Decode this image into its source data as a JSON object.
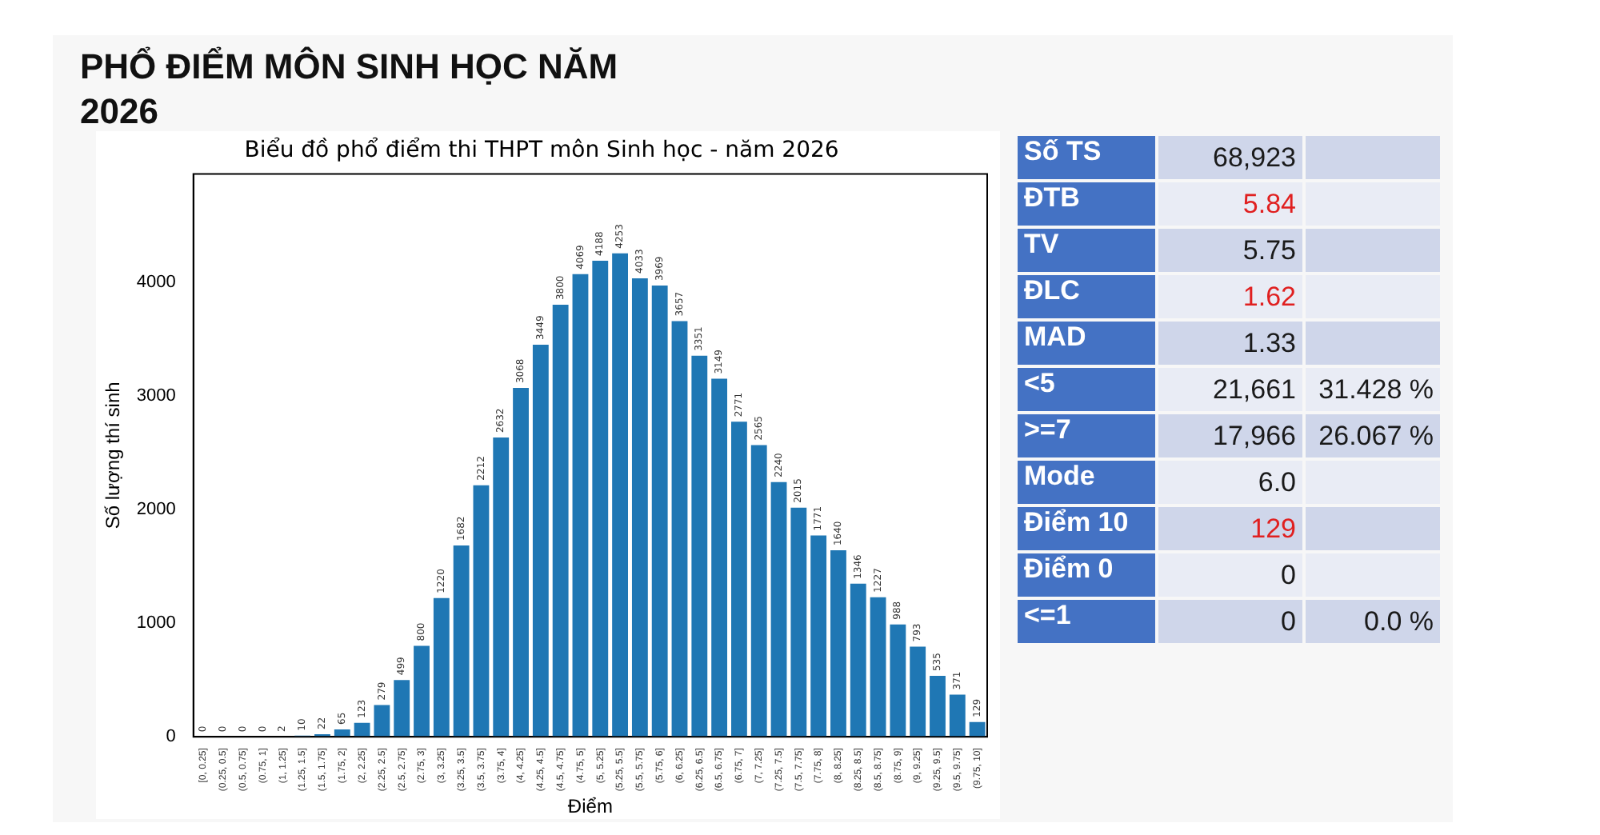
{
  "chart_data": [
    {
      "type": "bar",
      "title": "Biểu đồ phổ điểm thi THPT môn Sinh học - năm 2026",
      "xlabel": "Điểm",
      "ylabel": "Số lượng thí sinh",
      "annotations": [
        "PHỔ ĐIỂM MÔN SINH HỌC NĂM 2026"
      ],
      "categories": [
        "[0, 0.25]",
        "(0.25, 0.5]",
        "(0.5, 0.75]",
        "(0.75, 1]",
        "(1, 1.25]",
        "(1.25, 1.5]",
        "(1.5, 1.75]",
        "(1.75, 2]",
        "(2, 2.25]",
        "(2.25, 2.5]",
        "(2.5, 2.75]",
        "(2.75, 3]",
        "(3, 3.25]",
        "(3.25, 3.5]",
        "(3.5, 3.75]",
        "(3.75, 4]",
        "(4, 4.25]",
        "(4.25, 4.5]",
        "(4.5, 4.75]",
        "(4.75, 5]",
        "(5, 5.25]",
        "(5.25, 5.5]",
        "(5.5, 5.75]",
        "(5.75, 6]",
        "(6, 6.25]",
        "(6.25, 6.5]",
        "(6.5, 6.75]",
        "(6.75, 7]",
        "(7, 7.25]",
        "(7.25, 7.5]",
        "(7.5, 7.75]",
        "(7.75, 8]",
        "(8, 8.25]",
        "(8.25, 8.5]",
        "(8.5, 8.75]",
        "(8.75, 9]",
        "(9, 9.25]",
        "(9.25, 9.5]",
        "(9.5, 9.75]",
        "(9.75, 10]"
      ],
      "values": [
        0,
        0,
        0,
        0,
        2,
        10,
        22,
        65,
        123,
        279,
        499,
        800,
        1220,
        1682,
        2212,
        2632,
        3068,
        3449,
        3800,
        4069,
        4188,
        4253,
        4033,
        3969,
        3657,
        3351,
        3149,
        2771,
        2565,
        2240,
        2015,
        1771,
        1640,
        1346,
        1227,
        988,
        793,
        535,
        371,
        129
      ],
      "color": "#1f77b4",
      "ylim": [
        0,
        4950
      ],
      "yticks": [
        0,
        1000,
        2000,
        3000,
        4000
      ],
      "grid": false,
      "legend": false,
      "data_labels": true
    },
    {
      "type": "other",
      "y_categories": [
        "Số TS",
        "ĐTB",
        "TV",
        "ĐLC",
        "MAD",
        "<5",
        ">=7",
        "Mode",
        "Điểm 10",
        "Điểm 0",
        "<=1"
      ],
      "cell_labels": [
        [
          "68,923",
          null
        ],
        [
          "5.84",
          null
        ],
        [
          "5.75",
          null
        ],
        [
          "1.62",
          null
        ],
        [
          "1.33",
          null
        ],
        [
          "21,661",
          "31.428 %"
        ],
        [
          "17,966",
          "26.067 %"
        ],
        [
          "6.0",
          null
        ],
        [
          "129",
          null
        ],
        [
          "0",
          null
        ],
        [
          "0",
          "0.0 %"
        ]
      ],
      "colors": [
        "#1a1a1a",
        "#e02020",
        "#1a1a1a",
        "#e02020",
        "#1a1a1a",
        "#1a1a1a",
        "#1a1a1a",
        "#1a1a1a",
        "#e02020",
        "#1a1a1a",
        "#1a1a1a"
      ]
    }
  ]
}
